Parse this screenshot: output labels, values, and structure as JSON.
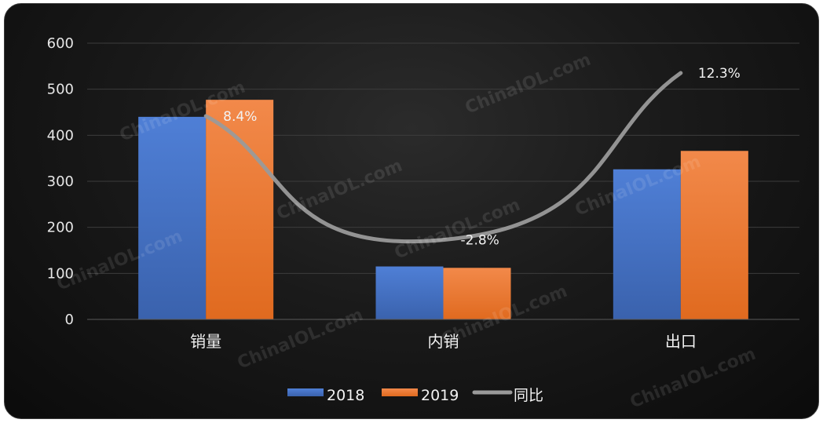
{
  "chart_data": {
    "type": "bar",
    "categories": [
      "销量",
      "内销",
      "出口"
    ],
    "series": [
      {
        "name": "2018",
        "values": [
          440,
          115,
          326
        ],
        "color": "#4472C4"
      },
      {
        "name": "2019",
        "values": [
          477,
          112,
          366
        ],
        "color": "#ED7D31"
      }
    ],
    "line_series": {
      "name": "同比",
      "values": [
        8.4,
        -2.8,
        12.3
      ],
      "labels": [
        "8.4%",
        "-2.8%",
        "12.3%"
      ],
      "color": "#9a9a9a"
    },
    "ylim": [
      0,
      600
    ],
    "yticks": [
      0,
      100,
      200,
      300,
      400,
      500,
      600
    ],
    "grid": true,
    "legend_position": "bottom"
  },
  "watermark": "ChinaIOL.com"
}
